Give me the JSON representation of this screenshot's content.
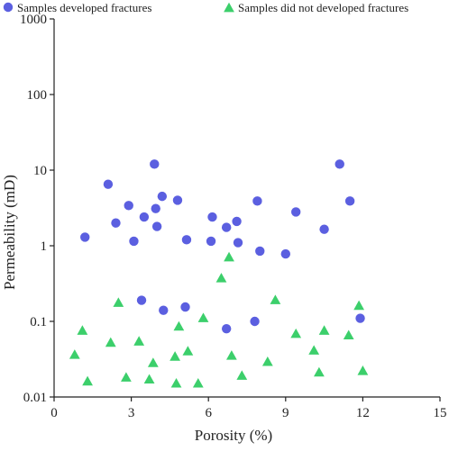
{
  "chart_data": {
    "type": "scatter",
    "title": "",
    "xlabel": "Porosity (%)",
    "ylabel": "Permeability  (mD)",
    "xlim": [
      0,
      15
    ],
    "ylim": [
      0.01,
      1000
    ],
    "y_scale": "log",
    "x_ticks": [
      0,
      3,
      6,
      9,
      12,
      15
    ],
    "x_tick_labels": [
      "0",
      "3",
      "6",
      "9",
      "12",
      "15"
    ],
    "y_ticks": [
      0.01,
      0.1,
      1,
      10,
      100,
      1000
    ],
    "y_tick_labels": [
      "0.01",
      "0.1",
      "1",
      "10",
      "100",
      "1000"
    ],
    "grid": false,
    "legend_position": "top",
    "series": [
      {
        "name": "Samples developed fractures",
        "marker": "circle",
        "color": "#5b5fe0",
        "points": [
          [
            1.2,
            1.3
          ],
          [
            2.1,
            6.5
          ],
          [
            2.4,
            2.0
          ],
          [
            2.9,
            3.4
          ],
          [
            3.1,
            1.15
          ],
          [
            3.4,
            0.19
          ],
          [
            3.5,
            2.4
          ],
          [
            3.9,
            12.0
          ],
          [
            3.95,
            3.1
          ],
          [
            4.0,
            1.8
          ],
          [
            4.2,
            4.5
          ],
          [
            4.25,
            0.14
          ],
          [
            4.8,
            4.0
          ],
          [
            5.1,
            0.155
          ],
          [
            5.15,
            1.2
          ],
          [
            6.1,
            1.15
          ],
          [
            6.15,
            2.4
          ],
          [
            6.7,
            1.75
          ],
          [
            6.7,
            0.08
          ],
          [
            7.1,
            2.1
          ],
          [
            7.15,
            1.1
          ],
          [
            7.8,
            0.1
          ],
          [
            7.9,
            3.9
          ],
          [
            8.0,
            0.85
          ],
          [
            9.0,
            0.78
          ],
          [
            9.4,
            2.8
          ],
          [
            10.5,
            1.65
          ],
          [
            11.1,
            12.0
          ],
          [
            11.5,
            3.9
          ],
          [
            11.9,
            0.11
          ]
        ]
      },
      {
        "name": "Samples did not developed fractures",
        "marker": "triangle",
        "color": "#3ccf6b",
        "points": [
          [
            0.8,
            0.036
          ],
          [
            1.1,
            0.075
          ],
          [
            1.3,
            0.016
          ],
          [
            2.2,
            0.052
          ],
          [
            2.5,
            0.175
          ],
          [
            2.8,
            0.018
          ],
          [
            3.3,
            0.054
          ],
          [
            3.7,
            0.017
          ],
          [
            3.85,
            0.028
          ],
          [
            4.7,
            0.034
          ],
          [
            4.75,
            0.015
          ],
          [
            4.85,
            0.085
          ],
          [
            5.2,
            0.04
          ],
          [
            5.6,
            0.015
          ],
          [
            5.8,
            0.11
          ],
          [
            6.5,
            0.37
          ],
          [
            6.8,
            0.7
          ],
          [
            6.9,
            0.035
          ],
          [
            7.3,
            0.019
          ],
          [
            8.3,
            0.029
          ],
          [
            8.6,
            0.19
          ],
          [
            9.4,
            0.068
          ],
          [
            10.1,
            0.041
          ],
          [
            10.3,
            0.021
          ],
          [
            10.5,
            0.075
          ],
          [
            11.45,
            0.065
          ],
          [
            11.85,
            0.16
          ],
          [
            12.0,
            0.022
          ]
        ]
      }
    ]
  }
}
